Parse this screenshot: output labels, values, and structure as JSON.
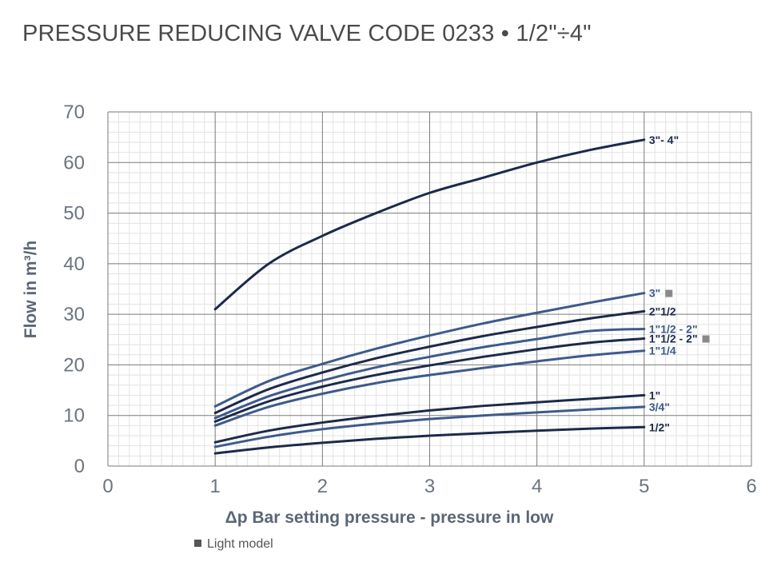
{
  "title": "PRESSURE REDUCING VALVE CODE 0233 • 1/2\"÷4\"",
  "footnote": {
    "marker": "■",
    "text": "Light model"
  },
  "chart_data": {
    "type": "line",
    "xlabel": "Δp Bar setting pressure - pressure in low",
    "ylabel": "Flow in m³/h",
    "xlim": [
      0,
      6
    ],
    "ylim": [
      0,
      70
    ],
    "x_ticks": [
      0,
      1,
      2,
      3,
      4,
      5,
      6
    ],
    "y_ticks": [
      0,
      10,
      20,
      30,
      40,
      50,
      60,
      70
    ],
    "grid": true,
    "x": [
      1,
      1.5,
      2,
      2.5,
      3,
      3.5,
      4,
      4.5,
      5
    ],
    "series": [
      {
        "name": "3\"- 4\"",
        "color": "#1c2a4a",
        "light_model": false,
        "values": [
          31,
          40,
          45.5,
          50,
          54,
          57,
          60,
          62.5,
          64.5
        ]
      },
      {
        "name": "3\"",
        "color": "#3d5a8c",
        "light_model": true,
        "values": [
          11.8,
          16.8,
          20.2,
          23.2,
          25.8,
          28.2,
          30.3,
          32.3,
          34.2
        ]
      },
      {
        "name": "2\"1/2",
        "color": "#1c2a4a",
        "light_model": false,
        "values": [
          10.5,
          15.2,
          18.5,
          21.3,
          23.6,
          25.7,
          27.5,
          29.2,
          30.6
        ]
      },
      {
        "name": "1\"1/2 - 2\"",
        "color": "#3d5a8c",
        "light_model": false,
        "values": [
          9.5,
          13.8,
          16.9,
          19.5,
          21.6,
          23.5,
          25.1,
          26.7,
          27.1
        ]
      },
      {
        "name": "1\"1/2 - 2\"",
        "color": "#1c2a4a",
        "light_model": true,
        "values": [
          8.8,
          12.8,
          15.7,
          18.0,
          19.9,
          21.6,
          23.1,
          24.4,
          25.2
        ]
      },
      {
        "name": "1\"1/4",
        "color": "#3d5a8c",
        "light_model": false,
        "values": [
          8.0,
          11.7,
          14.3,
          16.4,
          18.0,
          19.4,
          20.7,
          21.9,
          22.8
        ]
      },
      {
        "name": "1\"",
        "color": "#1c2a4a",
        "light_model": false,
        "values": [
          4.7,
          7.0,
          8.6,
          9.9,
          11.0,
          11.9,
          12.6,
          13.3,
          14.0
        ]
      },
      {
        "name": "3/4\"",
        "color": "#3d5a8c",
        "light_model": false,
        "values": [
          3.8,
          5.8,
          7.3,
          8.4,
          9.3,
          10.0,
          10.6,
          11.2,
          11.7
        ]
      },
      {
        "name": "1/2\"",
        "color": "#1c2a4a",
        "light_model": false,
        "values": [
          2.5,
          3.7,
          4.6,
          5.4,
          6.0,
          6.5,
          7.0,
          7.4,
          7.7
        ]
      }
    ]
  }
}
